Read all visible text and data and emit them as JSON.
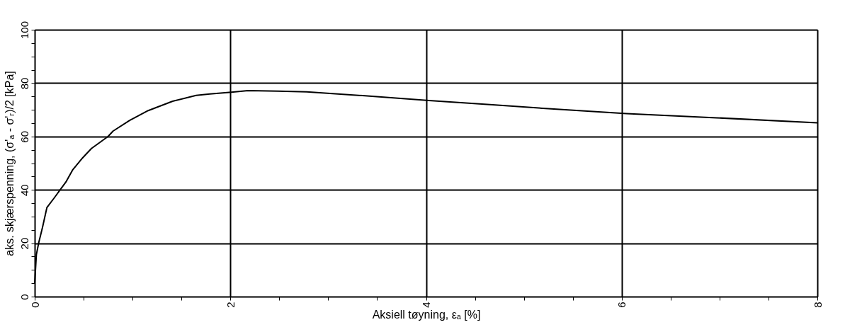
{
  "chart_data": {
    "type": "line",
    "xlabel": "Aksiell tøyning, εₐ [%]",
    "ylabel": "aks. skjærspenning, (σ'ₐ - σ'ᵣ)/2  [kPa]",
    "xlim": [
      0,
      8
    ],
    "ylim": [
      0,
      100
    ],
    "xticks": [
      0,
      {
        "value": 0.5,
        "label": null
      },
      {
        "value": 1,
        "label": null
      },
      {
        "value": 1.5,
        "label": null
      },
      2,
      {
        "value": 2.5,
        "label": null
      },
      {
        "value": 3,
        "label": null
      },
      {
        "value": 3.5,
        "label": null
      },
      4,
      {
        "value": 4.5,
        "label": null
      },
      {
        "value": 5,
        "label": null
      },
      {
        "value": 5.5,
        "label": null
      },
      6,
      {
        "value": 6.5,
        "label": null
      },
      {
        "value": 7,
        "label": null
      },
      {
        "value": 7.5,
        "label": null
      },
      8
    ],
    "yticks": [
      0,
      {
        "value": 5,
        "label": null
      },
      {
        "value": 10,
        "label": null
      },
      {
        "value": 15,
        "label": null
      },
      20,
      {
        "value": 25,
        "label": null
      },
      {
        "value": 30,
        "label": null
      },
      {
        "value": 35,
        "label": null
      },
      40,
      {
        "value": 45,
        "label": null
      },
      {
        "value": 50,
        "label": null
      },
      {
        "value": 55,
        "label": null
      },
      60,
      {
        "value": 65,
        "label": null
      },
      {
        "value": 70,
        "label": null
      },
      {
        "value": 75,
        "label": null
      },
      80,
      {
        "value": 85,
        "label": null
      },
      {
        "value": 90,
        "label": null
      },
      {
        "value": 95,
        "label": null
      },
      100
    ],
    "grid": true,
    "marker": "none",
    "line_style": "solid",
    "x": [
      0,
      0.017,
      0.04,
      0.08,
      0.125,
      0.2,
      0.26,
      0.32,
      0.39,
      0.49,
      0.58,
      0.75,
      0.8,
      0.97,
      1.16,
      1.41,
      1.65,
      1.79,
      2.01,
      2.18,
      2.49,
      2.78,
      3.35,
      4.03,
      4.68,
      5.25,
      6.05,
      6.97,
      8
    ],
    "series": [
      {
        "color": "#000000",
        "values": [
          5,
          15.7,
          20,
          26,
          33.4,
          37,
          40,
          43,
          47.6,
          52,
          55.5,
          60,
          62,
          66,
          69.7,
          73.2,
          75.4,
          75.9,
          76.6,
          77.2,
          77,
          76.7,
          75.3,
          73.5,
          71.9,
          70.4,
          68.6,
          67,
          65.1
        ]
      }
    ]
  }
}
